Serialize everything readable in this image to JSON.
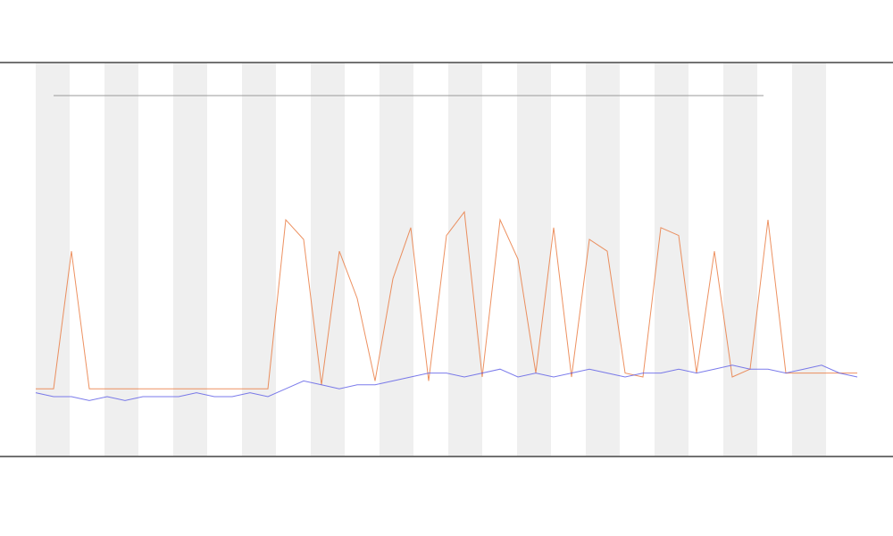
{
  "chart_data": {
    "type": "line",
    "x": [
      0,
      1,
      2,
      3,
      4,
      5,
      6,
      7,
      8,
      9,
      10,
      11,
      12,
      13,
      14,
      15,
      16,
      17,
      18,
      19,
      20,
      21,
      22,
      23,
      24,
      25,
      26,
      27,
      28,
      29,
      30,
      31,
      32,
      33,
      34,
      35,
      36,
      37,
      38,
      39,
      40,
      41,
      42,
      43,
      44,
      45,
      46
    ],
    "xlim": [
      0,
      46
    ],
    "ylim": [
      0,
      100
    ],
    "series": [
      {
        "color": "#e8753a",
        "values": [
          17,
          17,
          52,
          17,
          17,
          17,
          17,
          17,
          17,
          17,
          17,
          17,
          17,
          17,
          60,
          55,
          18,
          52,
          40,
          19,
          45,
          58,
          19,
          56,
          62,
          20,
          60,
          50,
          21,
          58,
          20,
          55,
          52,
          21,
          20,
          58,
          56,
          21,
          52,
          20,
          22,
          60,
          21,
          21,
          21,
          21,
          21
        ]
      },
      {
        "color": "#5a5ae6",
        "values": [
          16,
          15,
          15,
          14,
          15,
          14,
          15,
          15,
          15,
          16,
          15,
          15,
          16,
          15,
          17,
          19,
          18,
          17,
          18,
          18,
          19,
          20,
          21,
          21,
          20,
          21,
          22,
          20,
          21,
          20,
          21,
          22,
          21,
          20,
          21,
          21,
          22,
          21,
          22,
          23,
          22,
          22,
          21,
          22,
          23,
          21,
          20
        ]
      }
    ]
  }
}
